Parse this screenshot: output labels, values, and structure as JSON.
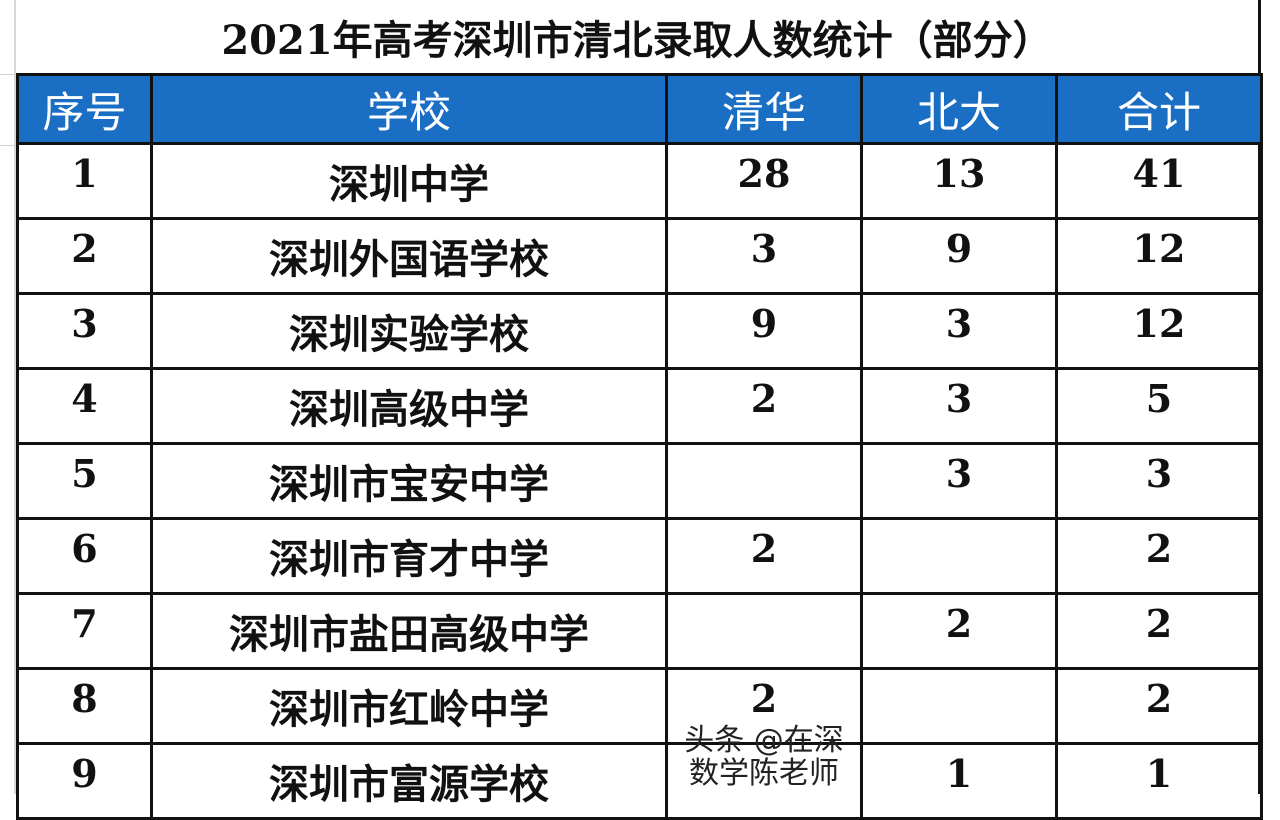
{
  "title": "2021年高考深圳市清北录取人数统计（部分）",
  "header_color": "#1a6fc4",
  "columns": [
    "序号",
    "学校",
    "清华",
    "北大",
    "合计"
  ],
  "rows": [
    {
      "no": "1",
      "school": "深圳中学",
      "qinghua": "28",
      "beida": "13",
      "total": "41"
    },
    {
      "no": "2",
      "school": "深圳外国语学校",
      "qinghua": "3",
      "beida": "9",
      "total": "12"
    },
    {
      "no": "3",
      "school": "深圳实验学校",
      "qinghua": "9",
      "beida": "3",
      "total": "12"
    },
    {
      "no": "4",
      "school": "深圳高级中学",
      "qinghua": "2",
      "beida": "3",
      "total": "5"
    },
    {
      "no": "5",
      "school": "深圳市宝安中学",
      "qinghua": "",
      "beida": "3",
      "total": "3"
    },
    {
      "no": "6",
      "school": "深圳市育才中学",
      "qinghua": "2",
      "beida": "",
      "total": "2"
    },
    {
      "no": "7",
      "school": "深圳市盐田高级中学",
      "qinghua": "",
      "beida": "2",
      "total": "2"
    },
    {
      "no": "8",
      "school": "深圳市红岭中学",
      "qinghua": "2",
      "beida": "",
      "total": "2"
    },
    {
      "no": "9",
      "school": "深圳市富源学校",
      "qinghua": "",
      "beida": "1",
      "total": "1"
    }
  ],
  "watermark": "头条 @在深数学陈老师"
}
